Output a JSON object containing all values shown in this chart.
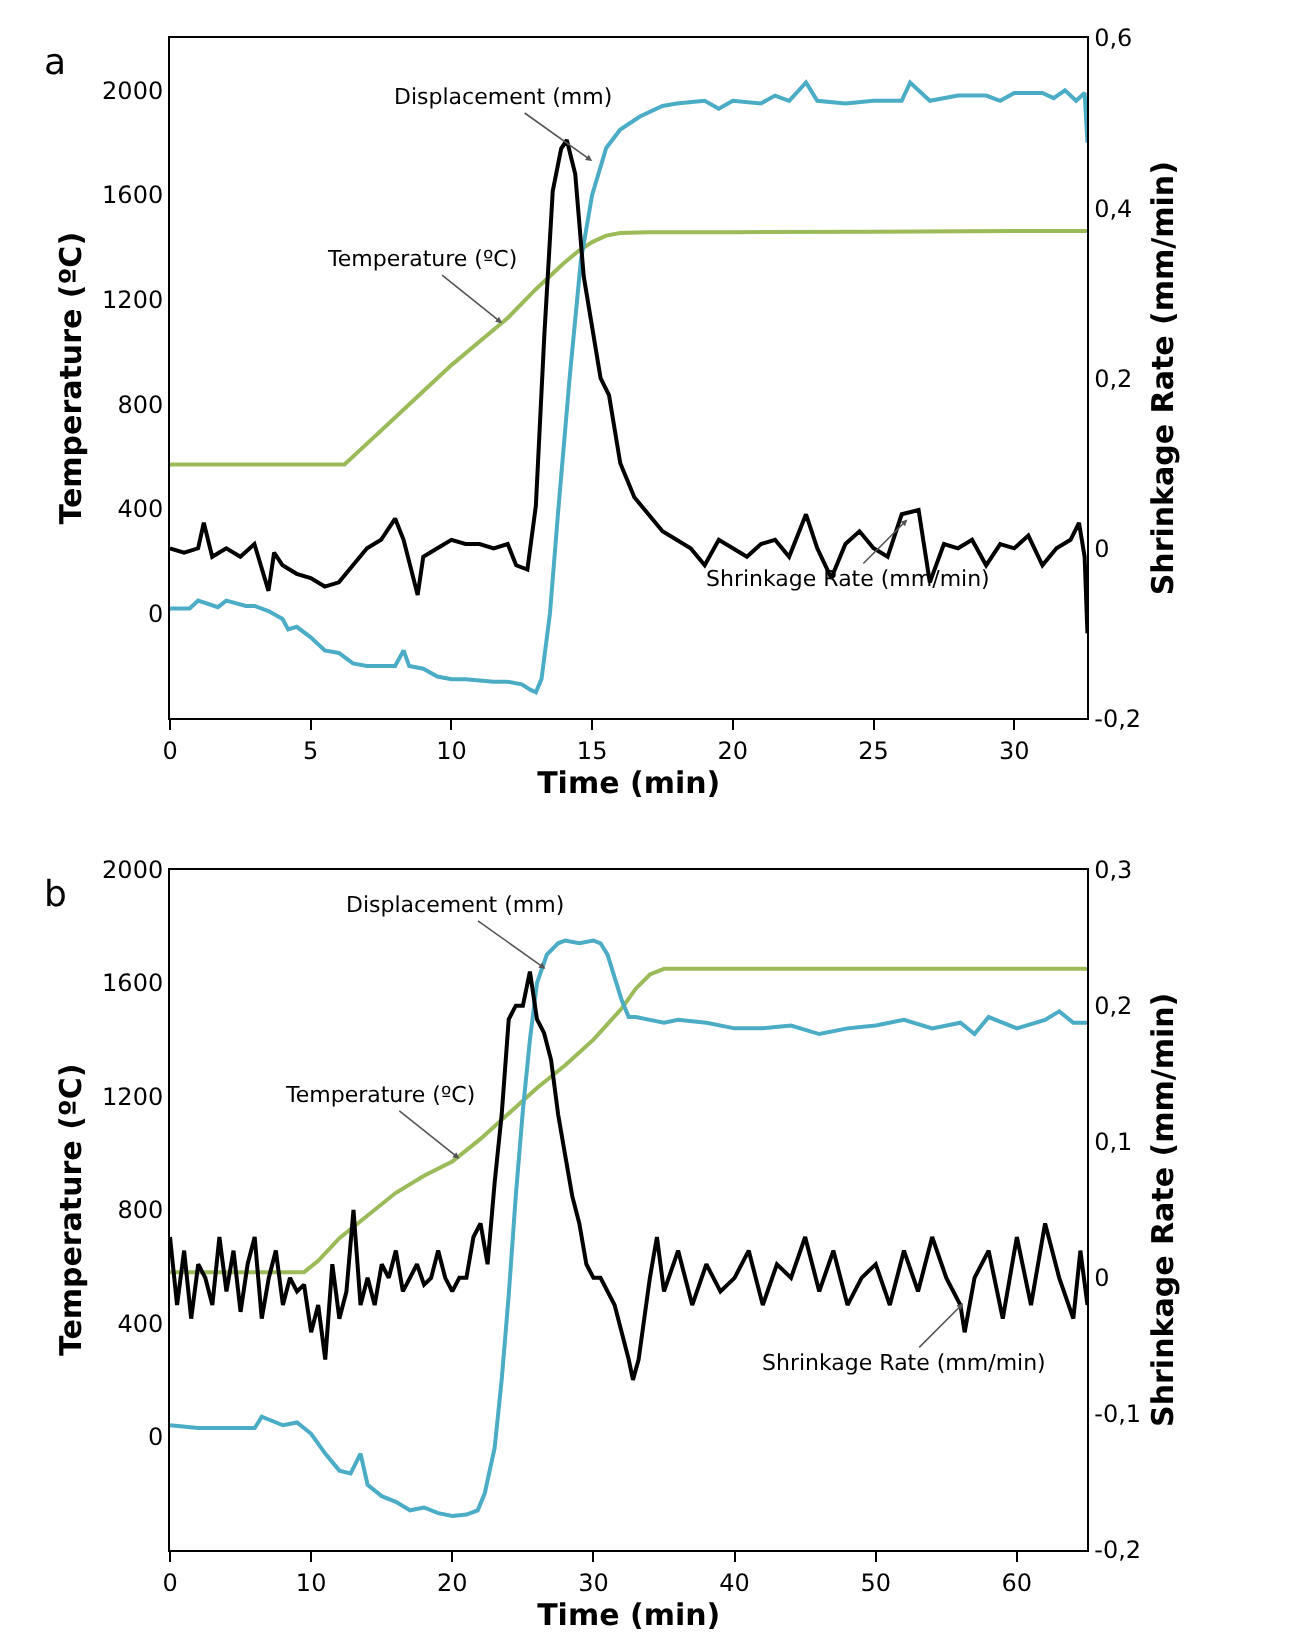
{
  "chart_data": [
    {
      "type": "line",
      "annotations": [
        "a",
        {
          "text": "Displacement (mm)",
          "x": 15.0,
          "y": 1730
        },
        {
          "text": "Temperature (ºC)",
          "x": 11.8,
          "y": 1110
        },
        {
          "text": "Shrinkage Rate (mm/min)",
          "x": 26.2,
          "y": 360
        }
      ],
      "xlabel": "Time (min)",
      "ylabel": "Temperature (ºC)",
      "y2label": "Shrinkage Rate (mm/min)",
      "xlim": [
        0,
        32.6
      ],
      "xticks": [
        0,
        5,
        10,
        15,
        20,
        25,
        30
      ],
      "ylim": [
        -400,
        2200
      ],
      "yticks": [
        0,
        400,
        800,
        1200,
        1600,
        2000
      ],
      "y2lim": [
        -0.2,
        0.6
      ],
      "y2ticks": [
        {
          "value": -0.2,
          "label": "-0,2"
        },
        0,
        {
          "value": 0.2,
          "label": "0,2"
        },
        {
          "value": 0.4,
          "label": "0,4"
        },
        {
          "value": 0.6,
          "label": "0,6"
        }
      ],
      "marker": "none",
      "line_style": "solid",
      "series": [
        {
          "color": "#9bbb59",
          "x": [
            0,
            6.2,
            7,
            8,
            9,
            10,
            11,
            12,
            13,
            14,
            14.5,
            15,
            15.5,
            16,
            17,
            20,
            25,
            30,
            32.6
          ],
          "values": [
            570,
            570,
            650,
            750,
            850,
            950,
            1040,
            1130,
            1240,
            1340,
            1385,
            1420,
            1445,
            1455,
            1458,
            1458,
            1460,
            1462,
            1462
          ]
        },
        {
          "color": "#4bacc6",
          "x": [
            0,
            0.7,
            1,
            1.7,
            2,
            2.7,
            3,
            3.5,
            4,
            4.2,
            4.5,
            5,
            5.5,
            6,
            6.5,
            7,
            7.5,
            8,
            8.3,
            8.5,
            9,
            9.5,
            10,
            10.5,
            11,
            11.5,
            12,
            12.5,
            12.8,
            13,
            13.2,
            13.5,
            13.8,
            14.2,
            14.6,
            15,
            15.5,
            16,
            16.7,
            17.5,
            18,
            19,
            19.5,
            20,
            21,
            21.5,
            22,
            22.6,
            23,
            24,
            25,
            26,
            26.3,
            27,
            28,
            29,
            29.5,
            30,
            31,
            31.4,
            31.8,
            32.2,
            32.5,
            32.6
          ],
          "values": [
            20,
            20,
            50,
            25,
            50,
            30,
            30,
            10,
            -20,
            -60,
            -50,
            -90,
            -140,
            -150,
            -190,
            -200,
            -200,
            -200,
            -140,
            -200,
            -210,
            -240,
            -250,
            -250,
            -255,
            -260,
            -260,
            -270,
            -290,
            -300,
            -250,
            0,
            400,
            900,
            1350,
            1600,
            1780,
            1850,
            1900,
            1940,
            1950,
            1960,
            1930,
            1960,
            1950,
            1980,
            1960,
            2030,
            1960,
            1950,
            1960,
            1960,
            2030,
            1960,
            1980,
            1980,
            1960,
            1990,
            1990,
            1970,
            2000,
            1960,
            1990,
            1800
          ]
        },
        {
          "color": "#000000",
          "axis": "y2",
          "x": [
            0,
            0.5,
            1,
            1.2,
            1.5,
            2,
            2.5,
            3,
            3.5,
            3.7,
            4,
            4.5,
            5,
            5.5,
            6,
            6.5,
            7,
            7.5,
            8,
            8.3,
            8.8,
            9,
            9.5,
            10,
            10.5,
            11,
            11.5,
            12,
            12.3,
            12.7,
            13,
            13.3,
            13.6,
            13.9,
            14.1,
            14.4,
            14.7,
            15,
            15.3,
            15.6,
            16,
            16.5,
            17,
            17.5,
            18,
            18.5,
            19,
            19.5,
            20,
            20.5,
            21,
            21.5,
            22,
            22.6,
            23,
            23.5,
            24,
            24.5,
            25,
            25.5,
            26,
            26.6,
            27,
            27.5,
            28,
            28.5,
            29,
            29.5,
            30,
            30.5,
            31,
            31.5,
            32,
            32.3,
            32.5,
            32.6
          ],
          "values": [
            0,
            -0.005,
            0,
            0.03,
            -0.01,
            0,
            -0.01,
            0.005,
            -0.05,
            -0.005,
            -0.02,
            -0.03,
            -0.035,
            -0.045,
            -0.04,
            -0.02,
            0,
            0.01,
            0.035,
            0.01,
            -0.055,
            -0.01,
            0,
            0.01,
            0.005,
            0.005,
            0,
            0.005,
            -0.02,
            -0.025,
            0.05,
            0.25,
            0.42,
            0.47,
            0.48,
            0.44,
            0.32,
            0.26,
            0.2,
            0.18,
            0.1,
            0.06,
            0.04,
            0.02,
            0.01,
            0.0,
            -0.02,
            0.01,
            0.0,
            -0.01,
            0.005,
            0.01,
            -0.01,
            0.04,
            0.0,
            -0.035,
            0.005,
            0.02,
            0.0,
            -0.01,
            0.04,
            0.045,
            -0.04,
            0.005,
            0.0,
            0.01,
            -0.02,
            0.005,
            0.0,
            0.015,
            -0.02,
            0.0,
            0.01,
            0.03,
            -0.01,
            -0.1
          ]
        }
      ]
    },
    {
      "type": "line",
      "annotations": [
        "b",
        {
          "text": "Displacement (mm)",
          "x": 26.6,
          "y": 1650
        },
        {
          "text": "Temperature (ºC)",
          "x": 20.5,
          "y": 980
        },
        {
          "text": "Shrinkage Rate (mm/min)",
          "x": 56.2,
          "y": 470
        }
      ],
      "xlabel": "Time (min)",
      "ylabel": "Temperature (ºC)",
      "y2label": "Shrinkage Rate (mm/min)",
      "xlim": [
        0,
        65
      ],
      "xticks": [
        0,
        10,
        20,
        30,
        40,
        50,
        60
      ],
      "ylim": [
        -400,
        2000
      ],
      "yticks": [
        0,
        400,
        800,
        1200,
        1600,
        2000
      ],
      "y2lim": [
        -0.2,
        0.3
      ],
      "y2ticks": [
        {
          "value": -0.2,
          "label": "-0,2"
        },
        {
          "value": -0.1,
          "label": "-0,1"
        },
        0,
        {
          "value": 0.1,
          "label": "0,1"
        },
        {
          "value": 0.2,
          "label": "0,2"
        },
        {
          "value": 0.3,
          "label": "0,3"
        }
      ],
      "marker": "none",
      "line_style": "solid",
      "series": [
        {
          "color": "#9bbb59",
          "x": [
            0,
            9.5,
            10.5,
            12,
            14,
            16,
            18,
            20,
            22,
            24,
            26,
            28,
            30,
            32,
            33,
            34,
            35,
            40,
            50,
            60,
            65
          ],
          "values": [
            580,
            580,
            620,
            700,
            780,
            860,
            920,
            970,
            1050,
            1140,
            1230,
            1310,
            1400,
            1510,
            1580,
            1630,
            1650,
            1650,
            1650,
            1650,
            1650
          ]
        },
        {
          "color": "#4bacc6",
          "x": [
            0,
            2,
            4,
            6,
            6.5,
            8,
            9,
            10,
            11,
            12,
            12.8,
            13.5,
            14,
            15,
            16,
            17,
            18,
            19,
            20,
            21,
            21.8,
            22.3,
            23,
            23.5,
            24,
            24.5,
            25,
            25.5,
            26,
            26.7,
            27.5,
            28,
            29,
            30,
            30.5,
            31,
            31.5,
            32,
            32.5,
            33,
            34,
            35,
            36,
            38,
            40,
            42,
            44,
            46,
            48,
            50,
            52,
            54,
            56,
            57,
            58,
            60,
            62,
            63,
            64,
            65
          ],
          "values": [
            40,
            30,
            30,
            30,
            70,
            40,
            50,
            10,
            -60,
            -120,
            -130,
            -60,
            -170,
            -210,
            -230,
            -260,
            -250,
            -270,
            -280,
            -275,
            -260,
            -200,
            -40,
            200,
            500,
            850,
            1150,
            1400,
            1600,
            1700,
            1740,
            1750,
            1740,
            1750,
            1740,
            1700,
            1620,
            1540,
            1480,
            1480,
            1470,
            1460,
            1470,
            1460,
            1440,
            1440,
            1450,
            1420,
            1440,
            1450,
            1470,
            1440,
            1460,
            1420,
            1480,
            1440,
            1470,
            1500,
            1460,
            1460
          ]
        },
        {
          "color": "#000000",
          "axis": "y2",
          "x": [
            0,
            0.5,
            1,
            1.5,
            2,
            2.5,
            3,
            3.5,
            4,
            4.5,
            5,
            5.5,
            6,
            6.5,
            7,
            7.5,
            8,
            8.5,
            9,
            9.5,
            10,
            10.5,
            11,
            11.5,
            12,
            12.5,
            13,
            13.5,
            14,
            14.5,
            15,
            15.5,
            16,
            16.5,
            17,
            17.5,
            18,
            18.5,
            19,
            19.5,
            20,
            20.5,
            21,
            21.5,
            22,
            22.5,
            23,
            23.5,
            24,
            24.5,
            25,
            25.5,
            26,
            26.5,
            27,
            27.5,
            28,
            28.5,
            29,
            29.5,
            30,
            30.5,
            31,
            31.5,
            32,
            32.5,
            32.8,
            33.2,
            33.6,
            34,
            34.5,
            35,
            36,
            37,
            38,
            39,
            40,
            41,
            42,
            43,
            44,
            45,
            46,
            47,
            48,
            49,
            50,
            51,
            52,
            53,
            54,
            55,
            56,
            56.3,
            57,
            58,
            59,
            60,
            61,
            62,
            63,
            64,
            64.5,
            65
          ],
          "values": [
            0.03,
            -0.02,
            0.02,
            -0.03,
            0.01,
            0.0,
            -0.02,
            0.03,
            -0.01,
            0.02,
            -0.025,
            0.01,
            0.03,
            -0.03,
            0.0,
            0.02,
            -0.02,
            0.0,
            -0.01,
            -0.005,
            -0.04,
            -0.02,
            -0.06,
            0.01,
            -0.03,
            -0.01,
            0.05,
            -0.02,
            0.0,
            -0.02,
            0.01,
            0.0,
            0.02,
            -0.01,
            0.0,
            0.01,
            -0.005,
            0.0,
            0.02,
            0.0,
            -0.01,
            0.0,
            0.0,
            0.03,
            0.04,
            0.01,
            0.07,
            0.12,
            0.19,
            0.2,
            0.2,
            0.225,
            0.19,
            0.18,
            0.16,
            0.12,
            0.09,
            0.06,
            0.04,
            0.01,
            0.0,
            0.0,
            -0.01,
            -0.02,
            -0.04,
            -0.06,
            -0.075,
            -0.06,
            -0.03,
            0.0,
            0.03,
            -0.01,
            0.02,
            -0.02,
            0.01,
            -0.01,
            0.0,
            0.02,
            -0.02,
            0.01,
            0.0,
            0.03,
            -0.01,
            0.02,
            -0.02,
            0.0,
            0.01,
            -0.02,
            0.02,
            -0.01,
            0.03,
            0.0,
            -0.02,
            -0.04,
            0.0,
            0.02,
            -0.03,
            0.03,
            -0.02,
            0.04,
            0.0,
            -0.03,
            0.02,
            -0.02
          ]
        }
      ]
    }
  ]
}
